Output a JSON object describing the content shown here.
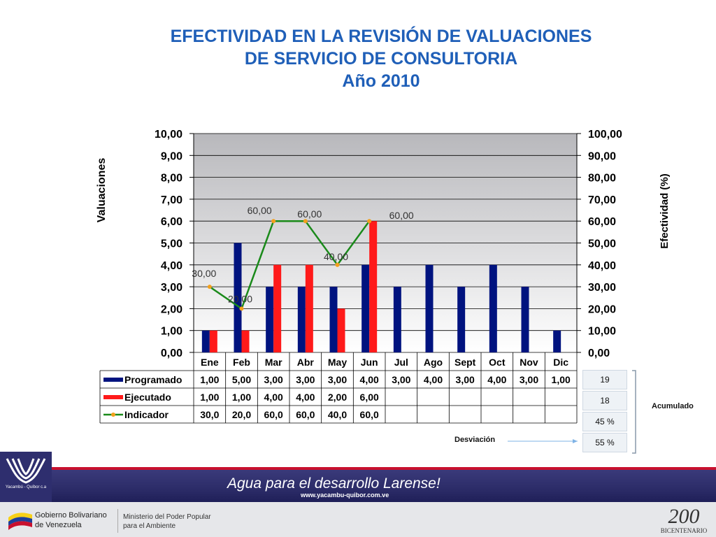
{
  "title": {
    "line1": "EFECTIVIDAD EN LA REVISIÓN DE VALUACIONES",
    "line2": "DE SERVICIO DE CONSULTORIA",
    "line3": "Año 2010"
  },
  "chart_data": {
    "type": "bar",
    "categories": [
      "Ene",
      "Feb",
      "Mar",
      "Abr",
      "May",
      "Jun",
      "Jul",
      "Ago",
      "Sept",
      "Oct",
      "Nov",
      "Dic"
    ],
    "series": [
      {
        "name": "Programado",
        "type": "bar",
        "color": "#00137f",
        "values": [
          1,
          5,
          3,
          3,
          3,
          4,
          3,
          4,
          3,
          4,
          3,
          1
        ],
        "table": [
          "1,00",
          "5,00",
          "3,00",
          "3,00",
          "3,00",
          "4,00",
          "3,00",
          "4,00",
          "3,00",
          "4,00",
          "3,00",
          "1,00"
        ]
      },
      {
        "name": "Ejecutado",
        "type": "bar",
        "color": "#ff1a1a",
        "values": [
          1,
          1,
          4,
          4,
          2,
          6,
          null,
          null,
          null,
          null,
          null,
          null
        ],
        "table": [
          "1,00",
          "1,00",
          "4,00",
          "4,00",
          "2,00",
          "6,00",
          "",
          "",
          "",
          "",
          "",
          ""
        ]
      },
      {
        "name": "Indicador",
        "type": "line",
        "axis": "right",
        "color": "#1a8a1a",
        "marker_color": "#f2a01c",
        "values": [
          30,
          20,
          60,
          60,
          40,
          60,
          null,
          null,
          null,
          null,
          null,
          null
        ],
        "labels": [
          "30,00",
          "20,00",
          "60,00",
          "60,00",
          "40,00",
          "60,00",
          "",
          "",
          "",
          "",
          "",
          ""
        ],
        "table": [
          "30,0",
          "20,0",
          "60,0",
          "60,0",
          "40,0",
          "60,0",
          "",
          "",
          "",
          "",
          "",
          ""
        ]
      }
    ],
    "ylabel": "Valuaciones",
    "y2label": "Efectividad  (%)",
    "ylim": [
      0,
      10
    ],
    "y2lim": [
      0,
      100
    ],
    "yticks": [
      "0,00",
      "1,00",
      "2,00",
      "3,00",
      "4,00",
      "5,00",
      "6,00",
      "7,00",
      "8,00",
      "9,00",
      "10,00"
    ],
    "y2ticks": [
      "0,00",
      "10,00",
      "20,00",
      "30,00",
      "40,00",
      "50,00",
      "60,00",
      "70,00",
      "80,00",
      "90,00",
      "100,00"
    ],
    "grid": true,
    "legend": "data-table"
  },
  "summary": {
    "values": [
      "19",
      "18",
      "45 %",
      "55 %"
    ],
    "acumulado": "Acumulado",
    "desviacion": "Desviación"
  },
  "footer": {
    "slogan": "Agua para el desarrollo Larense!",
    "url": "www.yacambu-quibor.com.ve",
    "logo_text": "Yacambú - Quíbor c.a",
    "gobierno_line1": "Gobierno Bolivariano",
    "gobierno_line2": "de Venezuela",
    "ministerio_line1": "Ministerio del Poder Popular",
    "ministerio_line2": "para el Ambiente",
    "bicentenario": "BICENTENARIO",
    "bicentenario_num": "200"
  }
}
